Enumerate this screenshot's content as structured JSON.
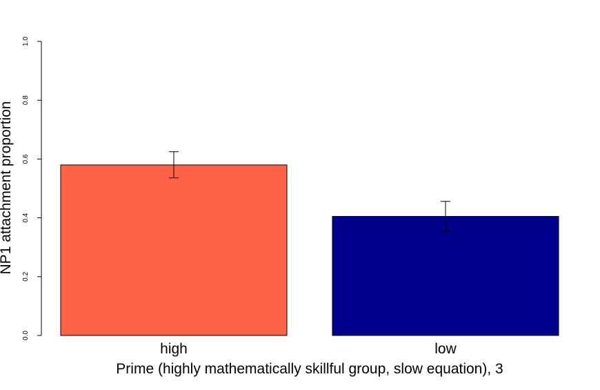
{
  "chart_data": {
    "type": "bar",
    "title": "",
    "xlabel": "Prime (highly mathematically skillful group, slow equation), 3",
    "ylabel": "NP1 attachment proportion",
    "ylim": [
      0,
      1
    ],
    "yticks": [
      "0.0",
      "0.2",
      "0.4",
      "0.6",
      "0.8",
      "1.0"
    ],
    "ytick_values": [
      0,
      0.2,
      0.4,
      0.6,
      0.8,
      1.0
    ],
    "grid": false,
    "legend": "none",
    "categories": [
      "high",
      "low"
    ],
    "values": [
      0.58,
      0.405
    ],
    "error_bars": {
      "lower": [
        0.536,
        0.355
      ],
      "upper": [
        0.625,
        0.456
      ]
    },
    "colors": [
      "#FF6347",
      "#00008B"
    ]
  }
}
